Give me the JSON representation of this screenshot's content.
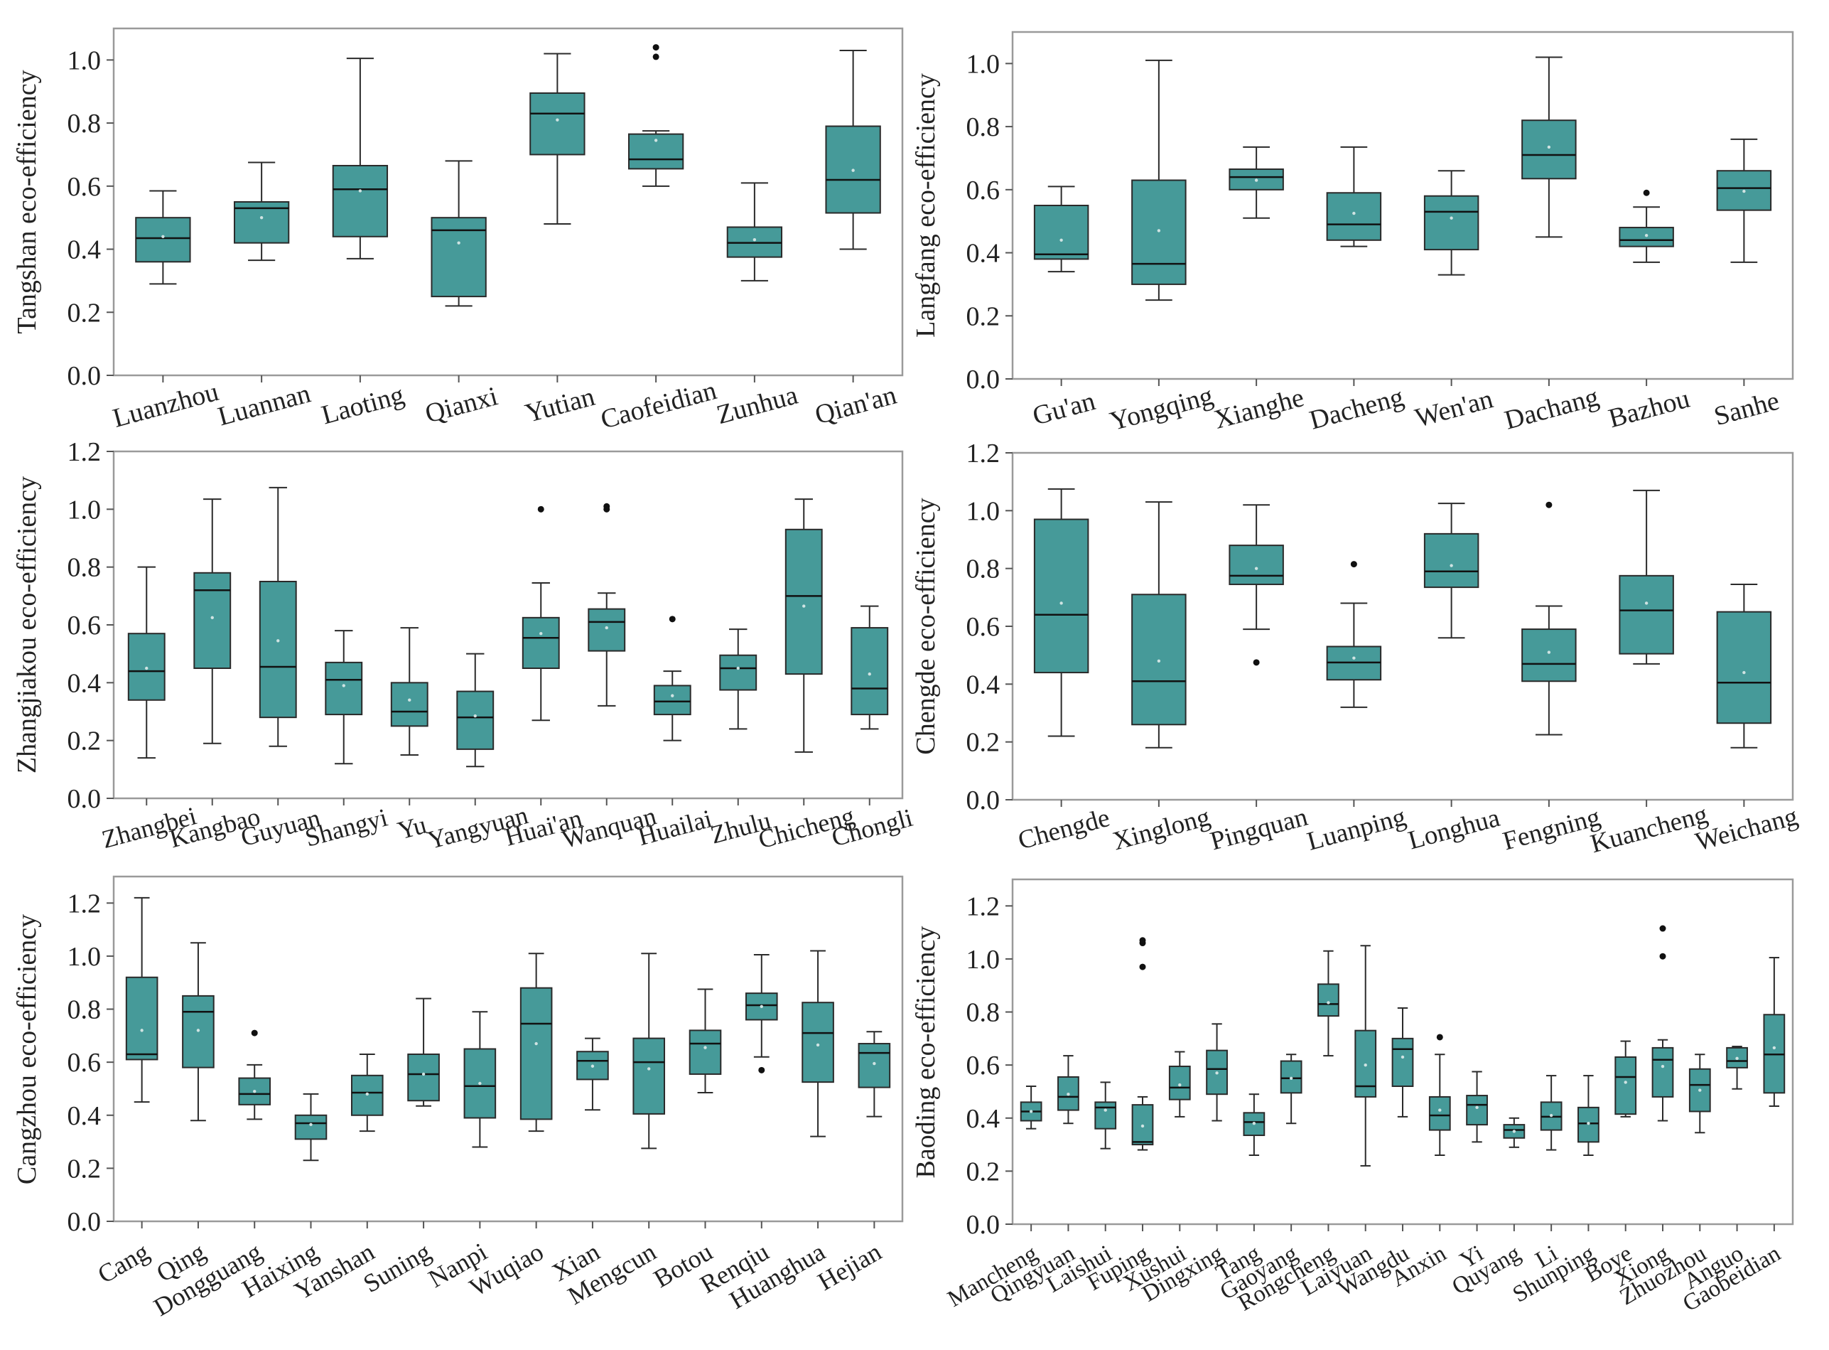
{
  "figure": {
    "box_color": "#469a99",
    "edge_color": "#2a2a2a",
    "axis_color": "#9a9a9a"
  },
  "chart_data": [
    {
      "type": "box",
      "ylabel": "Tangshan eco-efficiency",
      "ylim": [
        0,
        1.1
      ],
      "yticks": [
        0.0,
        0.2,
        0.4,
        0.6,
        0.8,
        1.0
      ],
      "categories": [
        "Luanzhou",
        "Luannan",
        "Laoting",
        "Qianxi",
        "Yutian",
        "Caofeidian",
        "Zunhua",
        "Qian'an"
      ],
      "boxes": [
        {
          "min": 0.29,
          "q1": 0.36,
          "median": 0.435,
          "q3": 0.5,
          "max": 0.585,
          "mean": 0.44,
          "outliers": []
        },
        {
          "min": 0.365,
          "q1": 0.42,
          "median": 0.53,
          "q3": 0.55,
          "max": 0.675,
          "mean": 0.5,
          "outliers": []
        },
        {
          "min": 0.37,
          "q1": 0.44,
          "median": 0.59,
          "q3": 0.665,
          "max": 1.005,
          "mean": 0.585,
          "outliers": []
        },
        {
          "min": 0.22,
          "q1": 0.25,
          "median": 0.46,
          "q3": 0.5,
          "max": 0.68,
          "mean": 0.42,
          "outliers": []
        },
        {
          "min": 0.48,
          "q1": 0.7,
          "median": 0.83,
          "q3": 0.895,
          "max": 1.02,
          "mean": 0.81,
          "outliers": []
        },
        {
          "min": 0.6,
          "q1": 0.655,
          "median": 0.685,
          "q3": 0.765,
          "max": 0.775,
          "mean": 0.745,
          "outliers": [
            1.01,
            1.04
          ]
        },
        {
          "min": 0.3,
          "q1": 0.375,
          "median": 0.42,
          "q3": 0.47,
          "max": 0.61,
          "mean": 0.43,
          "outliers": []
        },
        {
          "min": 0.4,
          "q1": 0.515,
          "median": 0.62,
          "q3": 0.79,
          "max": 1.03,
          "mean": 0.65,
          "outliers": []
        }
      ]
    },
    {
      "type": "box",
      "ylabel": "Langfang eco-efficiency",
      "ylim": [
        0,
        1.1
      ],
      "yticks": [
        0.0,
        0.2,
        0.4,
        0.6,
        0.8,
        1.0
      ],
      "categories": [
        "Gu'an",
        "Yongqing",
        "Xianghe",
        "Dacheng",
        "Wen'an",
        "Dachang",
        "Bazhou",
        "Sanhe"
      ],
      "boxes": [
        {
          "min": 0.34,
          "q1": 0.38,
          "median": 0.395,
          "q3": 0.55,
          "max": 0.61,
          "mean": 0.44,
          "outliers": []
        },
        {
          "min": 0.25,
          "q1": 0.3,
          "median": 0.365,
          "q3": 0.63,
          "max": 1.01,
          "mean": 0.47,
          "outliers": []
        },
        {
          "min": 0.51,
          "q1": 0.6,
          "median": 0.64,
          "q3": 0.665,
          "max": 0.735,
          "mean": 0.63,
          "outliers": []
        },
        {
          "min": 0.42,
          "q1": 0.44,
          "median": 0.49,
          "q3": 0.59,
          "max": 0.735,
          "mean": 0.525,
          "outliers": []
        },
        {
          "min": 0.33,
          "q1": 0.41,
          "median": 0.53,
          "q3": 0.58,
          "max": 0.66,
          "mean": 0.51,
          "outliers": []
        },
        {
          "min": 0.45,
          "q1": 0.635,
          "median": 0.71,
          "q3": 0.82,
          "max": 1.02,
          "mean": 0.735,
          "outliers": []
        },
        {
          "min": 0.37,
          "q1": 0.42,
          "median": 0.44,
          "q3": 0.48,
          "max": 0.545,
          "mean": 0.455,
          "outliers": [
            0.59
          ]
        },
        {
          "min": 0.37,
          "q1": 0.535,
          "median": 0.605,
          "q3": 0.66,
          "max": 0.76,
          "mean": 0.595,
          "outliers": []
        }
      ]
    },
    {
      "type": "box",
      "ylabel": "Zhangjiakou eco-efficiency",
      "ylim": [
        0,
        1.2
      ],
      "yticks": [
        0.0,
        0.2,
        0.4,
        0.6,
        0.8,
        1.0,
        1.2
      ],
      "categories": [
        "Zhangbei",
        "Kangbao",
        "Guyuan",
        "Shangyi",
        "Yu",
        "Yangyuan",
        "Huai'an",
        "Wanquan",
        "Huailai",
        "Zhulu",
        "Chicheng",
        "Chongli"
      ],
      "boxes": [
        {
          "min": 0.14,
          "q1": 0.34,
          "median": 0.44,
          "q3": 0.57,
          "max": 0.8,
          "mean": 0.45,
          "outliers": []
        },
        {
          "min": 0.19,
          "q1": 0.45,
          "median": 0.72,
          "q3": 0.78,
          "max": 1.035,
          "mean": 0.625,
          "outliers": []
        },
        {
          "min": 0.18,
          "q1": 0.28,
          "median": 0.455,
          "q3": 0.75,
          "max": 1.075,
          "mean": 0.545,
          "outliers": []
        },
        {
          "min": 0.12,
          "q1": 0.29,
          "median": 0.41,
          "q3": 0.47,
          "max": 0.58,
          "mean": 0.39,
          "outliers": []
        },
        {
          "min": 0.15,
          "q1": 0.25,
          "median": 0.3,
          "q3": 0.4,
          "max": 0.59,
          "mean": 0.34,
          "outliers": []
        },
        {
          "min": 0.11,
          "q1": 0.17,
          "median": 0.28,
          "q3": 0.37,
          "max": 0.5,
          "mean": 0.285,
          "outliers": []
        },
        {
          "min": 0.27,
          "q1": 0.45,
          "median": 0.555,
          "q3": 0.625,
          "max": 0.745,
          "mean": 0.57,
          "outliers": [
            1.0
          ]
        },
        {
          "min": 0.32,
          "q1": 0.51,
          "median": 0.61,
          "q3": 0.655,
          "max": 0.71,
          "mean": 0.59,
          "outliers": [
            1.0,
            1.01
          ]
        },
        {
          "min": 0.2,
          "q1": 0.29,
          "median": 0.335,
          "q3": 0.39,
          "max": 0.44,
          "mean": 0.355,
          "outliers": [
            0.62
          ]
        },
        {
          "min": 0.24,
          "q1": 0.375,
          "median": 0.45,
          "q3": 0.495,
          "max": 0.585,
          "mean": 0.45,
          "outliers": []
        },
        {
          "min": 0.16,
          "q1": 0.43,
          "median": 0.7,
          "q3": 0.93,
          "max": 1.035,
          "mean": 0.665,
          "outliers": []
        },
        {
          "min": 0.24,
          "q1": 0.29,
          "median": 0.38,
          "q3": 0.59,
          "max": 0.665,
          "mean": 0.43,
          "outliers": []
        }
      ]
    },
    {
      "type": "box",
      "ylabel": "Chengde eco-efficiency",
      "ylim": [
        0,
        1.2
      ],
      "yticks": [
        0.0,
        0.2,
        0.4,
        0.6,
        0.8,
        1.0,
        1.2
      ],
      "categories": [
        "Chengde",
        "Xinglong",
        "Pingquan",
        "Luanping",
        "Longhua",
        "Fengning",
        "Kuancheng",
        "Weichang"
      ],
      "boxes": [
        {
          "min": 0.22,
          "q1": 0.44,
          "median": 0.64,
          "q3": 0.97,
          "max": 1.075,
          "mean": 0.68,
          "outliers": []
        },
        {
          "min": 0.18,
          "q1": 0.26,
          "median": 0.41,
          "q3": 0.71,
          "max": 1.03,
          "mean": 0.48,
          "outliers": []
        },
        {
          "min": 0.59,
          "q1": 0.745,
          "median": 0.775,
          "q3": 0.88,
          "max": 1.02,
          "mean": 0.8,
          "outliers": [
            0.475
          ]
        },
        {
          "min": 0.32,
          "q1": 0.415,
          "median": 0.475,
          "q3": 0.53,
          "max": 0.68,
          "mean": 0.49,
          "outliers": [
            0.815
          ]
        },
        {
          "min": 0.56,
          "q1": 0.735,
          "median": 0.79,
          "q3": 0.92,
          "max": 1.025,
          "mean": 0.81,
          "outliers": []
        },
        {
          "min": 0.225,
          "q1": 0.41,
          "median": 0.47,
          "q3": 0.59,
          "max": 0.67,
          "mean": 0.51,
          "outliers": [
            1.02
          ]
        },
        {
          "min": 0.47,
          "q1": 0.505,
          "median": 0.655,
          "q3": 0.775,
          "max": 1.07,
          "mean": 0.68,
          "outliers": []
        },
        {
          "min": 0.18,
          "q1": 0.265,
          "median": 0.405,
          "q3": 0.65,
          "max": 0.745,
          "mean": 0.44,
          "outliers": []
        }
      ]
    },
    {
      "type": "box",
      "ylabel": "Cangzhou eco-efficiency",
      "ylim": [
        0,
        1.3
      ],
      "yticks": [
        0.0,
        0.2,
        0.4,
        0.6,
        0.8,
        1.0,
        1.2
      ],
      "categories": [
        "Cang",
        "Qing",
        "Dongguang",
        "Haixing",
        "Yanshan",
        "Suning",
        "Nanpi",
        "Wuqiao",
        "Xian",
        "Mengcun",
        "Botou",
        "Renqiu",
        "Huanghua",
        "Hejian"
      ],
      "boxes": [
        {
          "min": 0.45,
          "q1": 0.61,
          "median": 0.63,
          "q3": 0.92,
          "max": 1.22,
          "mean": 0.72,
          "outliers": []
        },
        {
          "min": 0.38,
          "q1": 0.58,
          "median": 0.79,
          "q3": 0.85,
          "max": 1.05,
          "mean": 0.72,
          "outliers": []
        },
        {
          "min": 0.385,
          "q1": 0.44,
          "median": 0.48,
          "q3": 0.54,
          "max": 0.59,
          "mean": 0.49,
          "outliers": [
            0.71
          ]
        },
        {
          "min": 0.23,
          "q1": 0.31,
          "median": 0.37,
          "q3": 0.4,
          "max": 0.48,
          "mean": 0.365,
          "outliers": []
        },
        {
          "min": 0.34,
          "q1": 0.4,
          "median": 0.485,
          "q3": 0.55,
          "max": 0.63,
          "mean": 0.48,
          "outliers": []
        },
        {
          "min": 0.435,
          "q1": 0.455,
          "median": 0.555,
          "q3": 0.63,
          "max": 0.84,
          "mean": 0.555,
          "outliers": []
        },
        {
          "min": 0.28,
          "q1": 0.39,
          "median": 0.51,
          "q3": 0.65,
          "max": 0.79,
          "mean": 0.52,
          "outliers": []
        },
        {
          "min": 0.34,
          "q1": 0.385,
          "median": 0.745,
          "q3": 0.88,
          "max": 1.01,
          "mean": 0.67,
          "outliers": []
        },
        {
          "min": 0.42,
          "q1": 0.535,
          "median": 0.605,
          "q3": 0.64,
          "max": 0.69,
          "mean": 0.585,
          "outliers": []
        },
        {
          "min": 0.275,
          "q1": 0.405,
          "median": 0.6,
          "q3": 0.69,
          "max": 1.01,
          "mean": 0.575,
          "outliers": []
        },
        {
          "min": 0.485,
          "q1": 0.555,
          "median": 0.67,
          "q3": 0.72,
          "max": 0.875,
          "mean": 0.655,
          "outliers": []
        },
        {
          "min": 0.62,
          "q1": 0.76,
          "median": 0.815,
          "q3": 0.86,
          "max": 1.005,
          "mean": 0.81,
          "outliers": [
            0.57
          ]
        },
        {
          "min": 0.32,
          "q1": 0.525,
          "median": 0.71,
          "q3": 0.825,
          "max": 1.02,
          "mean": 0.665,
          "outliers": []
        },
        {
          "min": 0.395,
          "q1": 0.505,
          "median": 0.635,
          "q3": 0.67,
          "max": 0.715,
          "mean": 0.595,
          "outliers": []
        }
      ]
    },
    {
      "type": "box",
      "ylabel": "Baoding eco-efficiency",
      "ylim": [
        0,
        1.3
      ],
      "yticks": [
        0.0,
        0.2,
        0.4,
        0.6,
        0.8,
        1.0,
        1.2
      ],
      "categories": [
        "Mancheng",
        "Qingyuan",
        "Laishui",
        "Fuping",
        "Xushui",
        "Dingxing",
        "Tang",
        "Gaoyang",
        "Rongcheng",
        "Laiyuan",
        "Wangdu",
        "Anxin",
        "Yi",
        "Quyang",
        "Li",
        "Shunping",
        "Boye",
        "Xiong",
        "Zhuozhou",
        "Anguo",
        "Gaobeidian"
      ],
      "boxes": [
        {
          "min": 0.36,
          "q1": 0.39,
          "median": 0.425,
          "q3": 0.46,
          "max": 0.52,
          "mean": 0.425,
          "outliers": []
        },
        {
          "min": 0.38,
          "q1": 0.43,
          "median": 0.48,
          "q3": 0.555,
          "max": 0.635,
          "mean": 0.49,
          "outliers": []
        },
        {
          "min": 0.285,
          "q1": 0.36,
          "median": 0.44,
          "q3": 0.46,
          "max": 0.535,
          "mean": 0.43,
          "outliers": []
        },
        {
          "min": 0.28,
          "q1": 0.3,
          "median": 0.31,
          "q3": 0.45,
          "max": 0.48,
          "mean": 0.37,
          "outliers": [
            0.97,
            1.06,
            1.07
          ]
        },
        {
          "min": 0.405,
          "q1": 0.47,
          "median": 0.515,
          "q3": 0.595,
          "max": 0.65,
          "mean": 0.525,
          "outliers": []
        },
        {
          "min": 0.39,
          "q1": 0.49,
          "median": 0.585,
          "q3": 0.655,
          "max": 0.755,
          "mean": 0.57,
          "outliers": []
        },
        {
          "min": 0.26,
          "q1": 0.335,
          "median": 0.385,
          "q3": 0.42,
          "max": 0.49,
          "mean": 0.38,
          "outliers": []
        },
        {
          "min": 0.38,
          "q1": 0.495,
          "median": 0.55,
          "q3": 0.615,
          "max": 0.64,
          "mean": 0.55,
          "outliers": []
        },
        {
          "min": 0.635,
          "q1": 0.785,
          "median": 0.83,
          "q3": 0.905,
          "max": 1.03,
          "mean": 0.835,
          "outliers": []
        },
        {
          "min": 0.22,
          "q1": 0.48,
          "median": 0.52,
          "q3": 0.73,
          "max": 1.05,
          "mean": 0.6,
          "outliers": []
        },
        {
          "min": 0.405,
          "q1": 0.52,
          "median": 0.66,
          "q3": 0.7,
          "max": 0.815,
          "mean": 0.63,
          "outliers": []
        },
        {
          "min": 0.26,
          "q1": 0.355,
          "median": 0.41,
          "q3": 0.48,
          "max": 0.64,
          "mean": 0.43,
          "outliers": [
            0.705
          ]
        },
        {
          "min": 0.31,
          "q1": 0.375,
          "median": 0.45,
          "q3": 0.485,
          "max": 0.575,
          "mean": 0.44,
          "outliers": []
        },
        {
          "min": 0.29,
          "q1": 0.325,
          "median": 0.355,
          "q3": 0.375,
          "max": 0.4,
          "mean": 0.35,
          "outliers": []
        },
        {
          "min": 0.28,
          "q1": 0.355,
          "median": 0.405,
          "q3": 0.46,
          "max": 0.56,
          "mean": 0.41,
          "outliers": []
        },
        {
          "min": 0.26,
          "q1": 0.31,
          "median": 0.38,
          "q3": 0.44,
          "max": 0.56,
          "mean": 0.38,
          "outliers": []
        },
        {
          "min": 0.405,
          "q1": 0.415,
          "median": 0.555,
          "q3": 0.63,
          "max": 0.69,
          "mean": 0.535,
          "outliers": []
        },
        {
          "min": 0.39,
          "q1": 0.48,
          "median": 0.62,
          "q3": 0.665,
          "max": 0.695,
          "mean": 0.595,
          "outliers": [
            1.01,
            1.115
          ]
        },
        {
          "min": 0.345,
          "q1": 0.425,
          "median": 0.525,
          "q3": 0.585,
          "max": 0.64,
          "mean": 0.505,
          "outliers": []
        },
        {
          "min": 0.51,
          "q1": 0.59,
          "median": 0.615,
          "q3": 0.665,
          "max": 0.67,
          "mean": 0.625,
          "outliers": []
        },
        {
          "min": 0.445,
          "q1": 0.495,
          "median": 0.64,
          "q3": 0.79,
          "max": 1.005,
          "mean": 0.665,
          "outliers": []
        }
      ]
    }
  ]
}
